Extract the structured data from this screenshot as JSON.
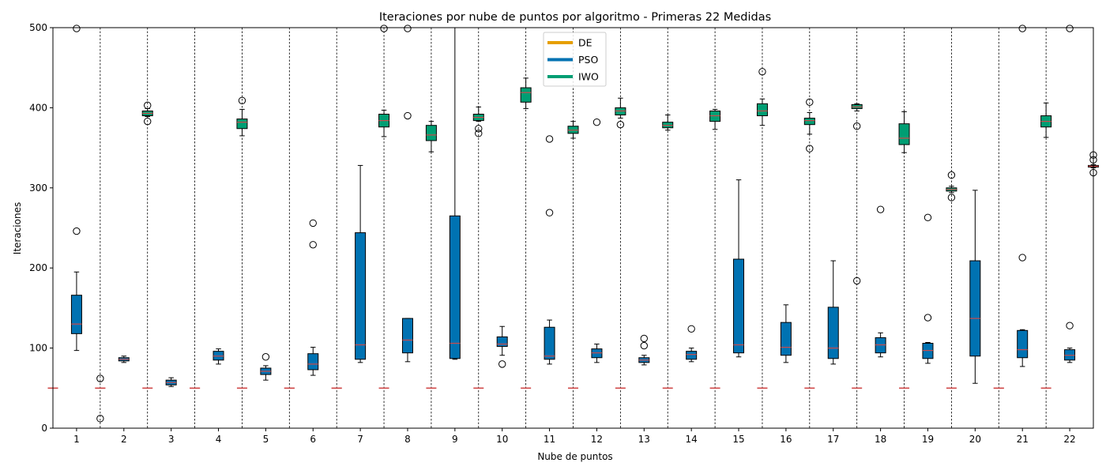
{
  "chart_data": {
    "type": "boxplot",
    "title": "Iteraciones por nube de puntos por algoritmo - Primeras 22 Medidas",
    "xlabel": "Nube de puntos",
    "ylabel": "Iteraciones",
    "ylim": [
      0,
      500
    ],
    "yticks": [
      0,
      100,
      200,
      300,
      400,
      500
    ],
    "legend_position": "top-center",
    "grid": false,
    "median_color": "#d04a4a",
    "series": [
      {
        "name": "DE",
        "color": "#e69f00"
      },
      {
        "name": "PSO",
        "color": "#0072b2"
      },
      {
        "name": "IWO",
        "color": "#009e73"
      }
    ],
    "categories": [
      "1",
      "2",
      "3",
      "4",
      "5",
      "6",
      "7",
      "8",
      "9",
      "10",
      "11",
      "12",
      "13",
      "14",
      "15",
      "16",
      "17",
      "18",
      "19",
      "20",
      "21",
      "22"
    ],
    "groups": [
      {
        "DE": {
          "wlo": 50,
          "q1": 50,
          "med": 50,
          "q3": 50,
          "whi": 50,
          "fliers": []
        },
        "PSO": {
          "wlo": 97,
          "q1": 118,
          "med": 130,
          "q3": 166,
          "whi": 195,
          "fliers": [
            246,
            499
          ]
        },
        "IWO": {
          "wlo": 50,
          "q1": 50,
          "med": 50,
          "q3": 50,
          "whi": 50,
          "fliers": [
            62
          ]
        }
      },
      {
        "DE": {
          "wlo": 50,
          "q1": 50,
          "med": 50,
          "q3": 50,
          "whi": 50,
          "fliers": [
            12
          ]
        },
        "PSO": {
          "wlo": 82,
          "q1": 84,
          "med": 86,
          "q3": 88,
          "whi": 90,
          "fliers": []
        },
        "IWO": {
          "wlo": 389,
          "q1": 390,
          "med": 393,
          "q3": 396,
          "whi": 399,
          "fliers": [
            383,
            403
          ]
        }
      },
      {
        "DE": {
          "wlo": 50,
          "q1": 50,
          "med": 50,
          "q3": 50,
          "whi": 50,
          "fliers": []
        },
        "PSO": {
          "wlo": 52,
          "q1": 54,
          "med": 57,
          "q3": 60,
          "whi": 63,
          "fliers": []
        },
        "IWO": {
          "wlo": 50,
          "q1": 50,
          "med": 50,
          "q3": 50,
          "whi": 50,
          "fliers": []
        }
      },
      {
        "DE": {
          "wlo": 50,
          "q1": 50,
          "med": 50,
          "q3": 50,
          "whi": 50,
          "fliers": []
        },
        "PSO": {
          "wlo": 80,
          "q1": 85,
          "med": 90,
          "q3": 96,
          "whi": 99,
          "fliers": []
        },
        "IWO": {
          "wlo": 365,
          "q1": 374,
          "med": 382,
          "q3": 386,
          "whi": 398,
          "fliers": [
            409
          ]
        }
      },
      {
        "DE": {
          "wlo": 50,
          "q1": 50,
          "med": 50,
          "q3": 50,
          "whi": 50,
          "fliers": []
        },
        "PSO": {
          "wlo": 60,
          "q1": 67,
          "med": 71,
          "q3": 75,
          "whi": 78,
          "fliers": [
            89
          ]
        },
        "IWO": {
          "wlo": 50,
          "q1": 50,
          "med": 50,
          "q3": 50,
          "whi": 50,
          "fliers": []
        }
      },
      {
        "DE": {
          "wlo": 50,
          "q1": 50,
          "med": 50,
          "q3": 50,
          "whi": 50,
          "fliers": []
        },
        "PSO": {
          "wlo": 66,
          "q1": 73,
          "med": 80,
          "q3": 93,
          "whi": 101,
          "fliers": [
            229,
            256
          ]
        },
        "IWO": {
          "wlo": 50,
          "q1": 50,
          "med": 50,
          "q3": 50,
          "whi": 50,
          "fliers": []
        }
      },
      {
        "DE": {
          "wlo": 50,
          "q1": 50,
          "med": 50,
          "q3": 50,
          "whi": 50,
          "fliers": []
        },
        "PSO": {
          "wlo": 82,
          "q1": 86,
          "med": 104,
          "q3": 244,
          "whi": 328,
          "fliers": []
        },
        "IWO": {
          "wlo": 364,
          "q1": 376,
          "med": 384,
          "q3": 392,
          "whi": 397,
          "fliers": [
            499
          ]
        }
      },
      {
        "DE": {
          "wlo": 50,
          "q1": 50,
          "med": 50,
          "q3": 50,
          "whi": 50,
          "fliers": []
        },
        "PSO": {
          "wlo": 83,
          "q1": 94,
          "med": 110,
          "q3": 137,
          "whi": 137,
          "fliers": [
            390,
            499
          ]
        },
        "IWO": {
          "wlo": 345,
          "q1": 359,
          "med": 366,
          "q3": 378,
          "whi": 383,
          "fliers": []
        }
      },
      {
        "DE": {
          "wlo": 50,
          "q1": 50,
          "med": 50,
          "q3": 50,
          "whi": 50,
          "fliers": []
        },
        "PSO": {
          "wlo": 86,
          "q1": 87,
          "med": 106,
          "q3": 265,
          "whi": 500,
          "fliers": []
        },
        "IWO": {
          "wlo": 383,
          "q1": 384,
          "med": 388,
          "q3": 392,
          "whi": 401,
          "fliers": [
            368,
            374
          ]
        }
      },
      {
        "DE": {
          "wlo": 50,
          "q1": 50,
          "med": 50,
          "q3": 50,
          "whi": 50,
          "fliers": []
        },
        "PSO": {
          "wlo": 91,
          "q1": 102,
          "med": 105,
          "q3": 114,
          "whi": 127,
          "fliers": [
            80
          ]
        },
        "IWO": {
          "wlo": 399,
          "q1": 407,
          "med": 419,
          "q3": 425,
          "whi": 437,
          "fliers": []
        }
      },
      {
        "DE": {
          "wlo": 50,
          "q1": 50,
          "med": 50,
          "q3": 50,
          "whi": 50,
          "fliers": []
        },
        "PSO": {
          "wlo": 80,
          "q1": 86,
          "med": 90,
          "q3": 126,
          "whi": 135,
          "fliers": [
            269,
            361
          ]
        },
        "IWO": {
          "wlo": 362,
          "q1": 368,
          "med": 372,
          "q3": 377,
          "whi": 383,
          "fliers": []
        }
      },
      {
        "DE": {
          "wlo": 50,
          "q1": 50,
          "med": 50,
          "q3": 50,
          "whi": 50,
          "fliers": []
        },
        "PSO": {
          "wlo": 82,
          "q1": 88,
          "med": 94,
          "q3": 99,
          "whi": 105,
          "fliers": [
            382
          ]
        },
        "IWO": {
          "wlo": 387,
          "q1": 391,
          "med": 396,
          "q3": 400,
          "whi": 412,
          "fliers": [
            379
          ]
        }
      },
      {
        "DE": {
          "wlo": 50,
          "q1": 50,
          "med": 50,
          "q3": 50,
          "whi": 50,
          "fliers": []
        },
        "PSO": {
          "wlo": 79,
          "q1": 82,
          "med": 85,
          "q3": 88,
          "whi": 91,
          "fliers": [
            103,
            112
          ]
        },
        "IWO": {
          "wlo": 372,
          "q1": 375,
          "med": 378,
          "q3": 382,
          "whi": 391,
          "fliers": []
        }
      },
      {
        "DE": {
          "wlo": 50,
          "q1": 50,
          "med": 50,
          "q3": 50,
          "whi": 50,
          "fliers": []
        },
        "PSO": {
          "wlo": 83,
          "q1": 86,
          "med": 92,
          "q3": 96,
          "whi": 100,
          "fliers": [
            124
          ]
        },
        "IWO": {
          "wlo": 373,
          "q1": 383,
          "med": 390,
          "q3": 396,
          "whi": 398,
          "fliers": []
        }
      },
      {
        "DE": {
          "wlo": 50,
          "q1": 50,
          "med": 50,
          "q3": 50,
          "whi": 50,
          "fliers": []
        },
        "PSO": {
          "wlo": 89,
          "q1": 94,
          "med": 104,
          "q3": 211,
          "whi": 310,
          "fliers": []
        },
        "IWO": {
          "wlo": 378,
          "q1": 390,
          "med": 396,
          "q3": 405,
          "whi": 411,
          "fliers": [
            445
          ]
        }
      },
      {
        "DE": {
          "wlo": 50,
          "q1": 50,
          "med": 50,
          "q3": 50,
          "whi": 50,
          "fliers": []
        },
        "PSO": {
          "wlo": 82,
          "q1": 91,
          "med": 101,
          "q3": 132,
          "whi": 154,
          "fliers": []
        },
        "IWO": {
          "wlo": 367,
          "q1": 379,
          "med": 384,
          "q3": 387,
          "whi": 394,
          "fliers": [
            349,
            407
          ]
        }
      },
      {
        "DE": {
          "wlo": 50,
          "q1": 50,
          "med": 50,
          "q3": 50,
          "whi": 50,
          "fliers": []
        },
        "PSO": {
          "wlo": 80,
          "q1": 87,
          "med": 100,
          "q3": 151,
          "whi": 209,
          "fliers": []
        },
        "IWO": {
          "wlo": 396,
          "q1": 399,
          "med": 401,
          "q3": 404,
          "whi": 405,
          "fliers": [
            184,
            377
          ]
        }
      },
      {
        "DE": {
          "wlo": 50,
          "q1": 50,
          "med": 50,
          "q3": 50,
          "whi": 50,
          "fliers": []
        },
        "PSO": {
          "wlo": 89,
          "q1": 94,
          "med": 104,
          "q3": 113,
          "whi": 119,
          "fliers": [
            273
          ]
        },
        "IWO": {
          "wlo": 344,
          "q1": 354,
          "med": 362,
          "q3": 380,
          "whi": 395,
          "fliers": []
        }
      },
      {
        "DE": {
          "wlo": 50,
          "q1": 50,
          "med": 50,
          "q3": 50,
          "whi": 50,
          "fliers": []
        },
        "PSO": {
          "wlo": 81,
          "q1": 87,
          "med": 97,
          "q3": 106,
          "whi": 107,
          "fliers": [
            138,
            263
          ]
        },
        "IWO": {
          "wlo": 294,
          "q1": 296,
          "med": 298,
          "q3": 300,
          "whi": 302,
          "fliers": [
            288,
            316
          ]
        }
      },
      {
        "DE": {
          "wlo": 50,
          "q1": 50,
          "med": 50,
          "q3": 50,
          "whi": 50,
          "fliers": []
        },
        "PSO": {
          "wlo": 56,
          "q1": 90,
          "med": 137,
          "q3": 209,
          "whi": 297,
          "fliers": []
        },
        "IWO": {
          "wlo": 50,
          "q1": 50,
          "med": 50,
          "q3": 50,
          "whi": 50,
          "fliers": []
        }
      },
      {
        "DE": {
          "wlo": 50,
          "q1": 50,
          "med": 50,
          "q3": 50,
          "whi": 50,
          "fliers": []
        },
        "PSO": {
          "wlo": 77,
          "q1": 88,
          "med": 98,
          "q3": 122,
          "whi": 123,
          "fliers": [
            213,
            499
          ]
        },
        "IWO": {
          "wlo": 363,
          "q1": 376,
          "med": 383,
          "q3": 390,
          "whi": 406,
          "fliers": []
        }
      },
      {
        "DE": {
          "wlo": 50,
          "q1": 50,
          "med": 50,
          "q3": 50,
          "whi": 50,
          "fliers": []
        },
        "PSO": {
          "wlo": 82,
          "q1": 85,
          "med": 91,
          "q3": 98,
          "whi": 100,
          "fliers": [
            128,
            499
          ]
        },
        "IWO": {
          "wlo": 325,
          "q1": 326,
          "med": 327,
          "q3": 328,
          "whi": 329,
          "fliers": [
            319,
            335,
            341
          ]
        }
      }
    ]
  }
}
